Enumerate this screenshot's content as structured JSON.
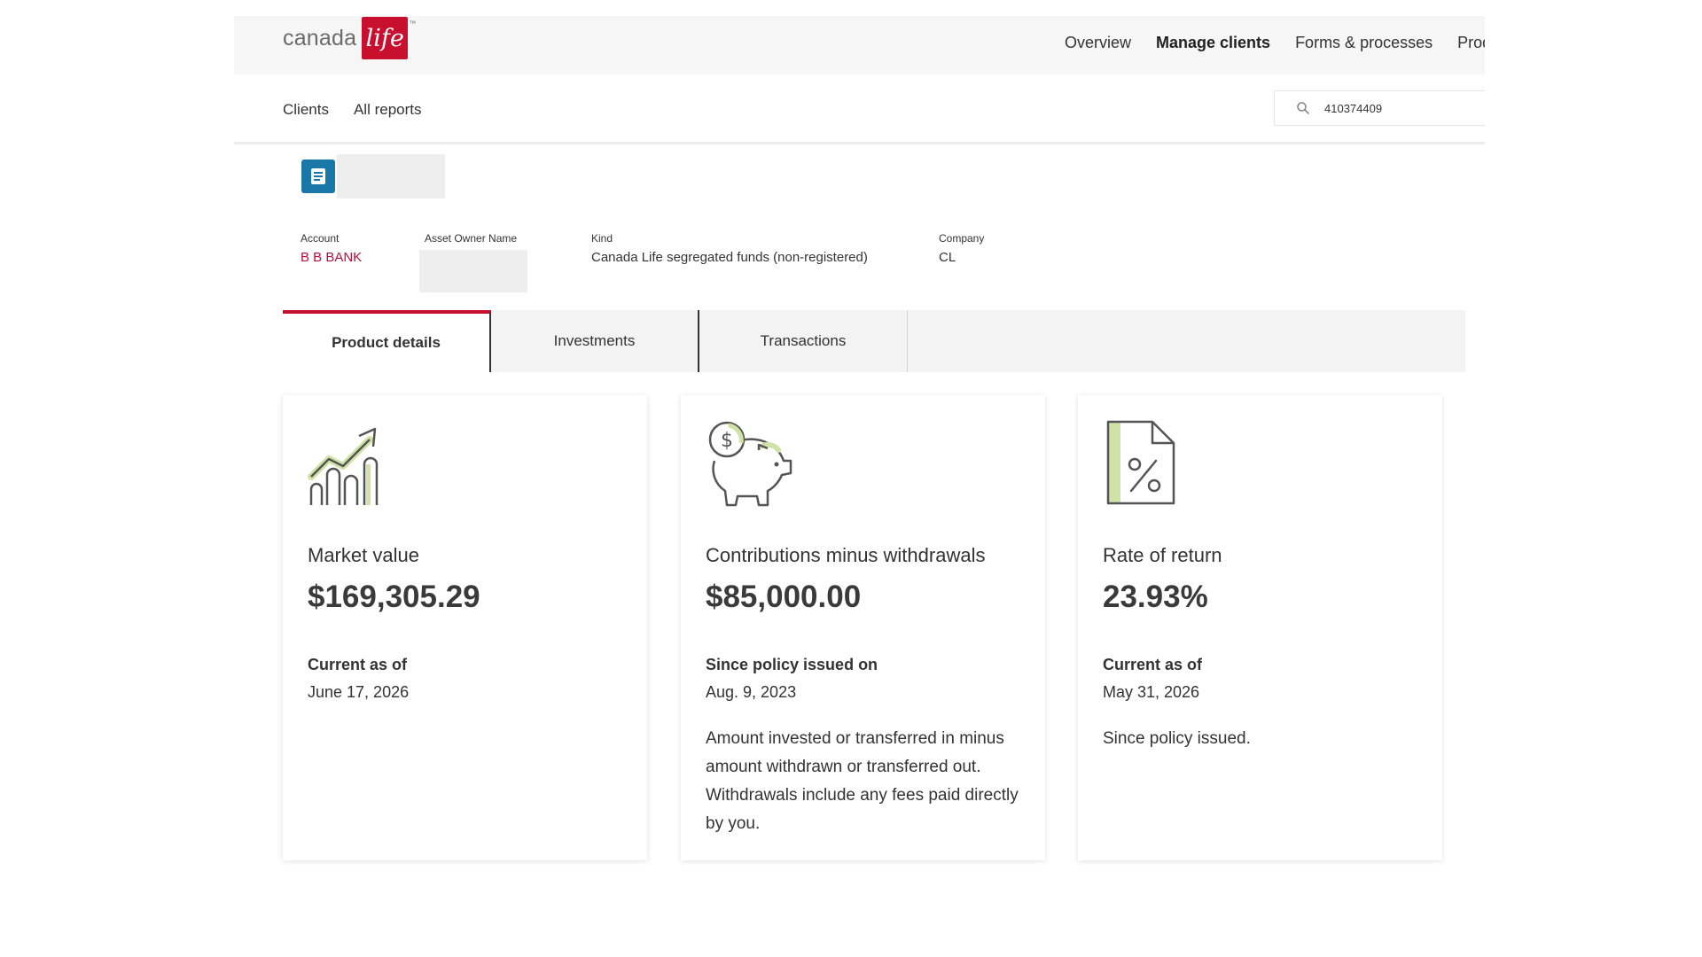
{
  "brand": {
    "logo_text": "canada",
    "logo_badge": "life",
    "trademark": "™",
    "accent_color": "#c8102e"
  },
  "top_nav": {
    "items": [
      "Overview",
      "Manage clients",
      "Forms & processes",
      "Products"
    ],
    "active": "Manage clients"
  },
  "sub_nav": {
    "links": [
      "Clients",
      "All reports"
    ],
    "search_value": "410374409"
  },
  "account": {
    "account_label": "Account",
    "account_value": "B B BANK",
    "owner_label": "Asset Owner Name",
    "kind_label": "Kind",
    "kind_value": "Canada Life segregated funds (non-registered)",
    "company_label": "Company",
    "company_value": "CL"
  },
  "tabs": [
    {
      "label": "Product details",
      "active": true
    },
    {
      "label": "Investments",
      "active": false
    },
    {
      "label": "Transactions",
      "active": false
    }
  ],
  "cards": [
    {
      "icon": "growth-chart-icon",
      "title": "Market value",
      "value": "$169,305.29",
      "sub": "Current as of",
      "date": "June 17, 2026",
      "desc": ""
    },
    {
      "icon": "piggy-bank-icon",
      "title": "Contributions minus withdrawals",
      "value": "$85,000.00",
      "sub": "Since policy issued on",
      "date": "Aug. 9, 2023",
      "desc": "Amount invested or transferred in minus amount withdrawn or transferred out. Withdrawals include any fees paid directly by you."
    },
    {
      "icon": "percent-document-icon",
      "title": "Rate of return",
      "value": "23.93%",
      "sub": "Current as of",
      "date": "May 31, 2026",
      "desc": "Since policy issued."
    }
  ]
}
